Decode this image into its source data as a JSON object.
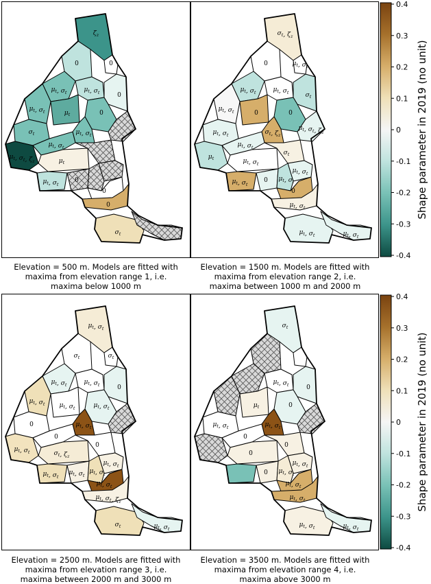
{
  "colorbar": {
    "title": "Shape parameter in 2019 (no unit)",
    "range": [
      -0.4,
      0.4
    ],
    "ticks": [
      "0.4",
      "0.3",
      "0.2",
      "0.1",
      "0",
      "-0.1",
      "-0.2",
      "-0.3",
      "-0.4"
    ],
    "stops": [
      "#7a4310",
      "#a6712c",
      "#d6ae6a",
      "#efe0b8",
      "#f5f5f5",
      "#bfe3de",
      "#79c1b6",
      "#3c948a",
      "#0e4a41"
    ]
  },
  "panels": [
    {
      "caption": [
        "Elevation = 500 m. Models are fitted with",
        "maxima from elevation range 1, i.e.",
        "maxima below 1000 m"
      ],
      "regions": [
        {
          "shape": 0,
          "fill": "#3c948a",
          "label": "ζz"
        },
        {
          "shape": 1,
          "fill": "#bfe3de",
          "label": "0"
        },
        {
          "shape": 2,
          "fill": "#ffffff",
          "label": "0"
        },
        {
          "shape": 3,
          "fill": "#79c1b6",
          "label": "μt, σt"
        },
        {
          "shape": 4,
          "fill": "#bfe3de",
          "label": "μt, σt"
        },
        {
          "shape": 5,
          "fill": "#e6f4f1",
          "label": "0"
        },
        {
          "shape": 6,
          "fill": "#79c1b6",
          "label": "μt, σt"
        },
        {
          "shape": 7,
          "fill": "#5eab9f",
          "label": "μt"
        },
        {
          "shape": 8,
          "fill": "#79c1b6",
          "label": "σt"
        },
        {
          "shape": 9,
          "fill": "#79c1b6",
          "label": "0"
        },
        {
          "shape": 10,
          "fill": "#79c1b6",
          "label": "μt, σt"
        },
        {
          "shape": 11,
          "fill": "hatch",
          "label": ""
        },
        {
          "shape": 12,
          "fill": "#0e4a41",
          "label": "μt, σt, ζz"
        },
        {
          "shape": 13,
          "fill": "#79c1b6",
          "label": "μt, σt"
        },
        {
          "shape": 14,
          "fill": "#f7f1e3",
          "label": "μt"
        },
        {
          "shape": 15,
          "fill": "hatch",
          "label": ""
        },
        {
          "shape": 16,
          "fill": "hatch",
          "label": ""
        },
        {
          "shape": 17,
          "fill": "#bfe3de",
          "label": "μt, σt"
        },
        {
          "shape": 18,
          "fill": "hatch",
          "label": "0"
        },
        {
          "shape": 19,
          "fill": "hatch",
          "label": ""
        },
        {
          "shape": 20,
          "fill": "#ffffff",
          "label": "0"
        },
        {
          "shape": 21,
          "fill": "#d6ae6a",
          "label": "0"
        },
        {
          "shape": 22,
          "fill": "#efe0b8",
          "label": "σt"
        },
        {
          "shape": 23,
          "fill": "hatch",
          "label": ""
        }
      ]
    },
    {
      "caption": [
        "Elevation = 1500 m. Models are fitted with",
        "maxima from elevation range 2, i.e.",
        "maxima between 1000 m and 2000 m"
      ],
      "regions": [
        {
          "shape": 0,
          "fill": "#f5ecd6",
          "label": "σt, ζz"
        },
        {
          "shape": 1,
          "fill": "#ffffff",
          "label": "0"
        },
        {
          "shape": 2,
          "fill": "#ffffff",
          "label": "μt, σt"
        },
        {
          "shape": 3,
          "fill": "#bfe3de",
          "label": "μt, σt"
        },
        {
          "shape": 4,
          "fill": "#ffffff",
          "label": "μt, σt"
        },
        {
          "shape": 5,
          "fill": "#bfe3de",
          "label": "σt"
        },
        {
          "shape": 6,
          "fill": "#f7f7f7",
          "label": "μt, σt"
        },
        {
          "shape": 7,
          "fill": "#d6ae6a",
          "label": "0"
        },
        {
          "shape": 8,
          "fill": "#e6f4f1",
          "label": "μt, σt"
        },
        {
          "shape": 9,
          "fill": "#79c1b6",
          "label": "0"
        },
        {
          "shape": 10,
          "fill": "#d6ae6a",
          "label": "σt, ζz"
        },
        {
          "shape": 11,
          "fill": "#e6f4f1",
          "label": "μt, σt, ζz"
        },
        {
          "shape": 12,
          "fill": "#bfe3de",
          "label": "μt"
        },
        {
          "shape": 13,
          "fill": "#e6f4f1",
          "label": "μt, σt"
        },
        {
          "shape": 14,
          "fill": "#ffffff",
          "label": "μt, σt"
        },
        {
          "shape": 15,
          "fill": "#f7f1e3",
          "label": "σt"
        },
        {
          "shape": 16,
          "fill": "#e6f4f1",
          "label": "μt, σt"
        },
        {
          "shape": 17,
          "fill": "#d6ae6a",
          "label": "μt, σt"
        },
        {
          "shape": 18,
          "fill": "#e6f4f1",
          "label": "0"
        },
        {
          "shape": 19,
          "fill": "#bfe3de",
          "label": "μt, σt"
        },
        {
          "shape": 20,
          "fill": "#d6ae6a",
          "label": "0"
        },
        {
          "shape": 21,
          "fill": "#f7f1e3",
          "label": "μt, σt"
        },
        {
          "shape": 22,
          "fill": "#e6f4f1",
          "label": "μt, σt"
        },
        {
          "shape": 23,
          "fill": "#e6f4f1",
          "label": "μt, σt"
        }
      ]
    },
    {
      "caption": [
        "Elevation = 2500 m. Models are fitted with",
        "maxima from elevation range 3, i.e.",
        "maxima between 2000 m and 3000 m"
      ],
      "regions": [
        {
          "shape": 0,
          "fill": "#f5ecd6",
          "label": "μt, σt"
        },
        {
          "shape": 1,
          "fill": "#ffffff",
          "label": "σt"
        },
        {
          "shape": 2,
          "fill": "#ffffff",
          "label": "σt"
        },
        {
          "shape": 3,
          "fill": "#e6f4f1",
          "label": "μt, σt"
        },
        {
          "shape": 4,
          "fill": "#ffffff",
          "label": "μt, σt"
        },
        {
          "shape": 5,
          "fill": "#e6f4f1",
          "label": "0"
        },
        {
          "shape": 6,
          "fill": "#efe0b8",
          "label": "μt, σt"
        },
        {
          "shape": 7,
          "fill": "#ffffff",
          "label": "μt, σt"
        },
        {
          "shape": 8,
          "fill": "#ffffff",
          "label": "0"
        },
        {
          "shape": 9,
          "fill": "#e6f4f1",
          "label": "μt, σt"
        },
        {
          "shape": 10,
          "fill": "#8c5316",
          "label": "μt, σt"
        },
        {
          "shape": 11,
          "fill": "hatch",
          "label": ""
        },
        {
          "shape": 12,
          "fill": "#f2e3be",
          "label": "μt, σt"
        },
        {
          "shape": 13,
          "fill": "#ffffff",
          "label": "0"
        },
        {
          "shape": 14,
          "fill": "#f5ecd6",
          "label": "σt, ζz"
        },
        {
          "shape": 15,
          "fill": "#ffffff",
          "label": "0"
        },
        {
          "shape": 16,
          "fill": "#f7f1e3",
          "label": "μt, σt"
        },
        {
          "shape": 17,
          "fill": "#efe0b8",
          "label": "μt, σt"
        },
        {
          "shape": 18,
          "fill": "#f7f1e3",
          "label": "μt, σt"
        },
        {
          "shape": 19,
          "fill": "#efe0b8",
          "label": "μt, σt"
        },
        {
          "shape": 20,
          "fill": "#8c5316",
          "label": "μt, σt"
        },
        {
          "shape": 21,
          "fill": "#f7f1e3",
          "label": "μt, σt, ζz"
        },
        {
          "shape": 22,
          "fill": "#efe0b8",
          "label": "σt"
        },
        {
          "shape": 23,
          "fill": "#e6f4f1",
          "label": "μt, σt"
        }
      ]
    },
    {
      "caption": [
        "Elevation = 3500 m. Models are fitted with",
        "maxima from elevation range 4, i.e.",
        "maxima above 3000 m"
      ],
      "regions": [
        {
          "shape": 0,
          "fill": "#e6f4f1",
          "label": "σt"
        },
        {
          "shape": 1,
          "fill": "hatch",
          "label": ""
        },
        {
          "shape": 2,
          "fill": "#ffffff",
          "label": ""
        },
        {
          "shape": 3,
          "fill": "hatch",
          "label": ""
        },
        {
          "shape": 4,
          "fill": "#ffffff",
          "label": "μt, σt"
        },
        {
          "shape": 5,
          "fill": "#e6f4f1",
          "label": "0"
        },
        {
          "shape": 6,
          "fill": "hatch",
          "label": ""
        },
        {
          "shape": 7,
          "fill": "#f7f1e3",
          "label": "μt"
        },
        {
          "shape": 8,
          "fill": "#ffffff",
          "label": "μt, σt"
        },
        {
          "shape": 9,
          "fill": "#e6f4f1",
          "label": "0"
        },
        {
          "shape": 10,
          "fill": "#8c5316",
          "label": "μt, σt"
        },
        {
          "shape": 11,
          "fill": "hatch",
          "label": ""
        },
        {
          "shape": 12,
          "fill": "hatch",
          "label": ""
        },
        {
          "shape": 13,
          "fill": "#ffffff",
          "label": "0"
        },
        {
          "shape": 14,
          "fill": "#f7f1e3",
          "label": "0"
        },
        {
          "shape": 15,
          "fill": "#f7f1e3",
          "label": "0"
        },
        {
          "shape": 16,
          "fill": "#f7f1e3",
          "label": "μt, σt"
        },
        {
          "shape": 17,
          "fill": "#79c1b6",
          "label": ""
        },
        {
          "shape": 18,
          "fill": "#f7f1e3",
          "label": "0"
        },
        {
          "shape": 19,
          "fill": "#f5ecd6",
          "label": "μt, σt"
        },
        {
          "shape": 20,
          "fill": "#d6ae6a",
          "label": "μt, σt"
        },
        {
          "shape": 21,
          "fill": "#d6ae6a",
          "label": "μt, σt"
        },
        {
          "shape": 22,
          "fill": "#f7f1e3",
          "label": "μt, σt"
        },
        {
          "shape": 23,
          "fill": "#e6f4f1",
          "label": "μt, σt"
        }
      ]
    }
  ]
}
